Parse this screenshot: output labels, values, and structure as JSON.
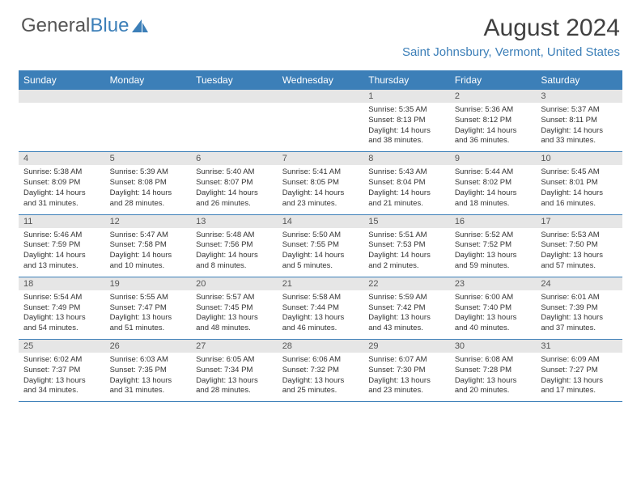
{
  "brand": {
    "part1": "General",
    "part2": "Blue"
  },
  "title": "August 2024",
  "location": "Saint Johnsbury, Vermont, United States",
  "colors": {
    "header_bg": "#3c7fb8",
    "daynum_bg": "#e6e6e6",
    "border": "#3c7fb8",
    "text": "#333333",
    "title": "#404040"
  },
  "weekdays": [
    "Sunday",
    "Monday",
    "Tuesday",
    "Wednesday",
    "Thursday",
    "Friday",
    "Saturday"
  ],
  "weeks": [
    [
      null,
      null,
      null,
      null,
      {
        "n": "1",
        "sr": "5:35 AM",
        "ss": "8:13 PM",
        "dl": "14 hours and 38 minutes."
      },
      {
        "n": "2",
        "sr": "5:36 AM",
        "ss": "8:12 PM",
        "dl": "14 hours and 36 minutes."
      },
      {
        "n": "3",
        "sr": "5:37 AM",
        "ss": "8:11 PM",
        "dl": "14 hours and 33 minutes."
      }
    ],
    [
      {
        "n": "4",
        "sr": "5:38 AM",
        "ss": "8:09 PM",
        "dl": "14 hours and 31 minutes."
      },
      {
        "n": "5",
        "sr": "5:39 AM",
        "ss": "8:08 PM",
        "dl": "14 hours and 28 minutes."
      },
      {
        "n": "6",
        "sr": "5:40 AM",
        "ss": "8:07 PM",
        "dl": "14 hours and 26 minutes."
      },
      {
        "n": "7",
        "sr": "5:41 AM",
        "ss": "8:05 PM",
        "dl": "14 hours and 23 minutes."
      },
      {
        "n": "8",
        "sr": "5:43 AM",
        "ss": "8:04 PM",
        "dl": "14 hours and 21 minutes."
      },
      {
        "n": "9",
        "sr": "5:44 AM",
        "ss": "8:02 PM",
        "dl": "14 hours and 18 minutes."
      },
      {
        "n": "10",
        "sr": "5:45 AM",
        "ss": "8:01 PM",
        "dl": "14 hours and 16 minutes."
      }
    ],
    [
      {
        "n": "11",
        "sr": "5:46 AM",
        "ss": "7:59 PM",
        "dl": "14 hours and 13 minutes."
      },
      {
        "n": "12",
        "sr": "5:47 AM",
        "ss": "7:58 PM",
        "dl": "14 hours and 10 minutes."
      },
      {
        "n": "13",
        "sr": "5:48 AM",
        "ss": "7:56 PM",
        "dl": "14 hours and 8 minutes."
      },
      {
        "n": "14",
        "sr": "5:50 AM",
        "ss": "7:55 PM",
        "dl": "14 hours and 5 minutes."
      },
      {
        "n": "15",
        "sr": "5:51 AM",
        "ss": "7:53 PM",
        "dl": "14 hours and 2 minutes."
      },
      {
        "n": "16",
        "sr": "5:52 AM",
        "ss": "7:52 PM",
        "dl": "13 hours and 59 minutes."
      },
      {
        "n": "17",
        "sr": "5:53 AM",
        "ss": "7:50 PM",
        "dl": "13 hours and 57 minutes."
      }
    ],
    [
      {
        "n": "18",
        "sr": "5:54 AM",
        "ss": "7:49 PM",
        "dl": "13 hours and 54 minutes."
      },
      {
        "n": "19",
        "sr": "5:55 AM",
        "ss": "7:47 PM",
        "dl": "13 hours and 51 minutes."
      },
      {
        "n": "20",
        "sr": "5:57 AM",
        "ss": "7:45 PM",
        "dl": "13 hours and 48 minutes."
      },
      {
        "n": "21",
        "sr": "5:58 AM",
        "ss": "7:44 PM",
        "dl": "13 hours and 46 minutes."
      },
      {
        "n": "22",
        "sr": "5:59 AM",
        "ss": "7:42 PM",
        "dl": "13 hours and 43 minutes."
      },
      {
        "n": "23",
        "sr": "6:00 AM",
        "ss": "7:40 PM",
        "dl": "13 hours and 40 minutes."
      },
      {
        "n": "24",
        "sr": "6:01 AM",
        "ss": "7:39 PM",
        "dl": "13 hours and 37 minutes."
      }
    ],
    [
      {
        "n": "25",
        "sr": "6:02 AM",
        "ss": "7:37 PM",
        "dl": "13 hours and 34 minutes."
      },
      {
        "n": "26",
        "sr": "6:03 AM",
        "ss": "7:35 PM",
        "dl": "13 hours and 31 minutes."
      },
      {
        "n": "27",
        "sr": "6:05 AM",
        "ss": "7:34 PM",
        "dl": "13 hours and 28 minutes."
      },
      {
        "n": "28",
        "sr": "6:06 AM",
        "ss": "7:32 PM",
        "dl": "13 hours and 25 minutes."
      },
      {
        "n": "29",
        "sr": "6:07 AM",
        "ss": "7:30 PM",
        "dl": "13 hours and 23 minutes."
      },
      {
        "n": "30",
        "sr": "6:08 AM",
        "ss": "7:28 PM",
        "dl": "13 hours and 20 minutes."
      },
      {
        "n": "31",
        "sr": "6:09 AM",
        "ss": "7:27 PM",
        "dl": "13 hours and 17 minutes."
      }
    ]
  ],
  "labels": {
    "sunrise": "Sunrise: ",
    "sunset": "Sunset: ",
    "daylight": "Daylight: "
  }
}
